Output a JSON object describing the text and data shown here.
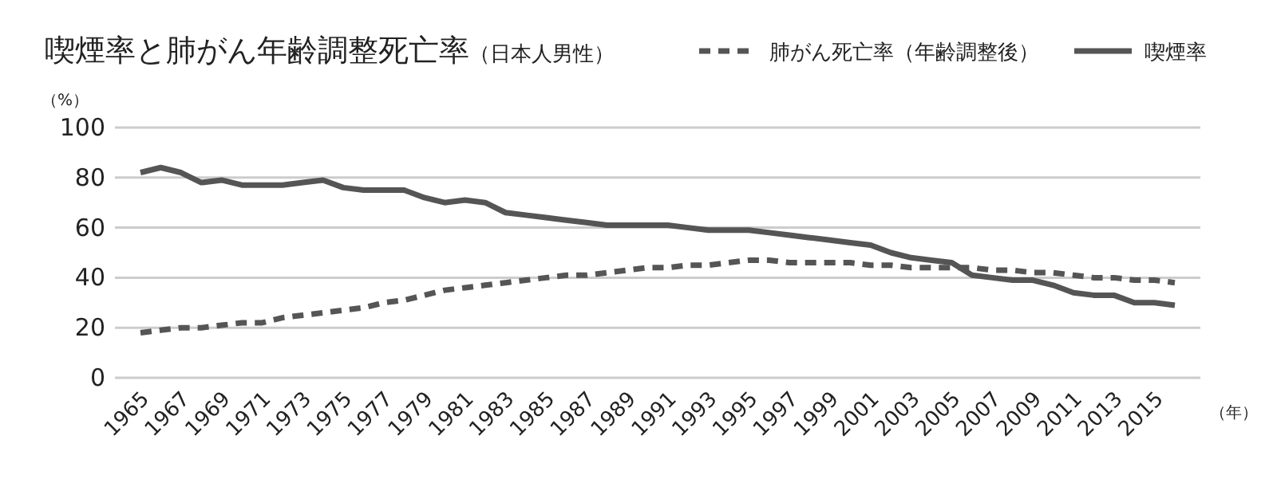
{
  "chart_data": {
    "type": "line",
    "title": "喫煙率と肺がん年齢調整死亡率",
    "subtitle": "（日本人男性）",
    "ylabel": "（%）",
    "xlabel": "（年）",
    "categories": [
      "1965",
      null,
      "1967",
      null,
      "1969",
      null,
      "1971",
      null,
      "1973",
      null,
      "1975",
      null,
      "1977",
      null,
      "1979",
      null,
      "1981",
      null,
      "1983",
      null,
      "1985",
      null,
      "1987",
      null,
      "1989",
      null,
      "1991",
      null,
      "1993",
      null,
      "1995",
      null,
      "1997",
      null,
      "1999",
      null,
      "2001",
      null,
      "2003",
      null,
      "2005",
      null,
      "2007",
      null,
      "2009",
      null,
      "2011",
      null,
      "2013",
      null,
      "2015",
      null
    ],
    "series": [
      {
        "name": "肺がん死亡率（年齢調整後）",
        "color": "#555555",
        "line_style": "dashed",
        "values": [
          18,
          19,
          20,
          20,
          21,
          22,
          22,
          24,
          25,
          26,
          27,
          28,
          30,
          31,
          33,
          35,
          36,
          37,
          38,
          39,
          40,
          41,
          41,
          42,
          43,
          44,
          44,
          45,
          45,
          46,
          47,
          47,
          46,
          46,
          46,
          46,
          45,
          45,
          44,
          44,
          44,
          44,
          43,
          43,
          42,
          42,
          41,
          40,
          40,
          39,
          39,
          38
        ]
      },
      {
        "name": "喫煙率",
        "color": "#555555",
        "line_style": "solid",
        "values": [
          82,
          84,
          82,
          78,
          79,
          77,
          77,
          77,
          78,
          79,
          76,
          75,
          75,
          75,
          72,
          70,
          71,
          70,
          66,
          65,
          64,
          63,
          62,
          61,
          61,
          61,
          61,
          60,
          59,
          59,
          59,
          58,
          57,
          56,
          55,
          54,
          53,
          50,
          48,
          47,
          46,
          41,
          40,
          39,
          39,
          37,
          34,
          33,
          33,
          30,
          30,
          29
        ]
      }
    ],
    "ylim": [
      0,
      100
    ],
    "yticks": [
      0,
      20,
      40,
      60,
      80,
      100
    ],
    "grid": "y",
    "legend": "top right",
    "marker": "none"
  }
}
